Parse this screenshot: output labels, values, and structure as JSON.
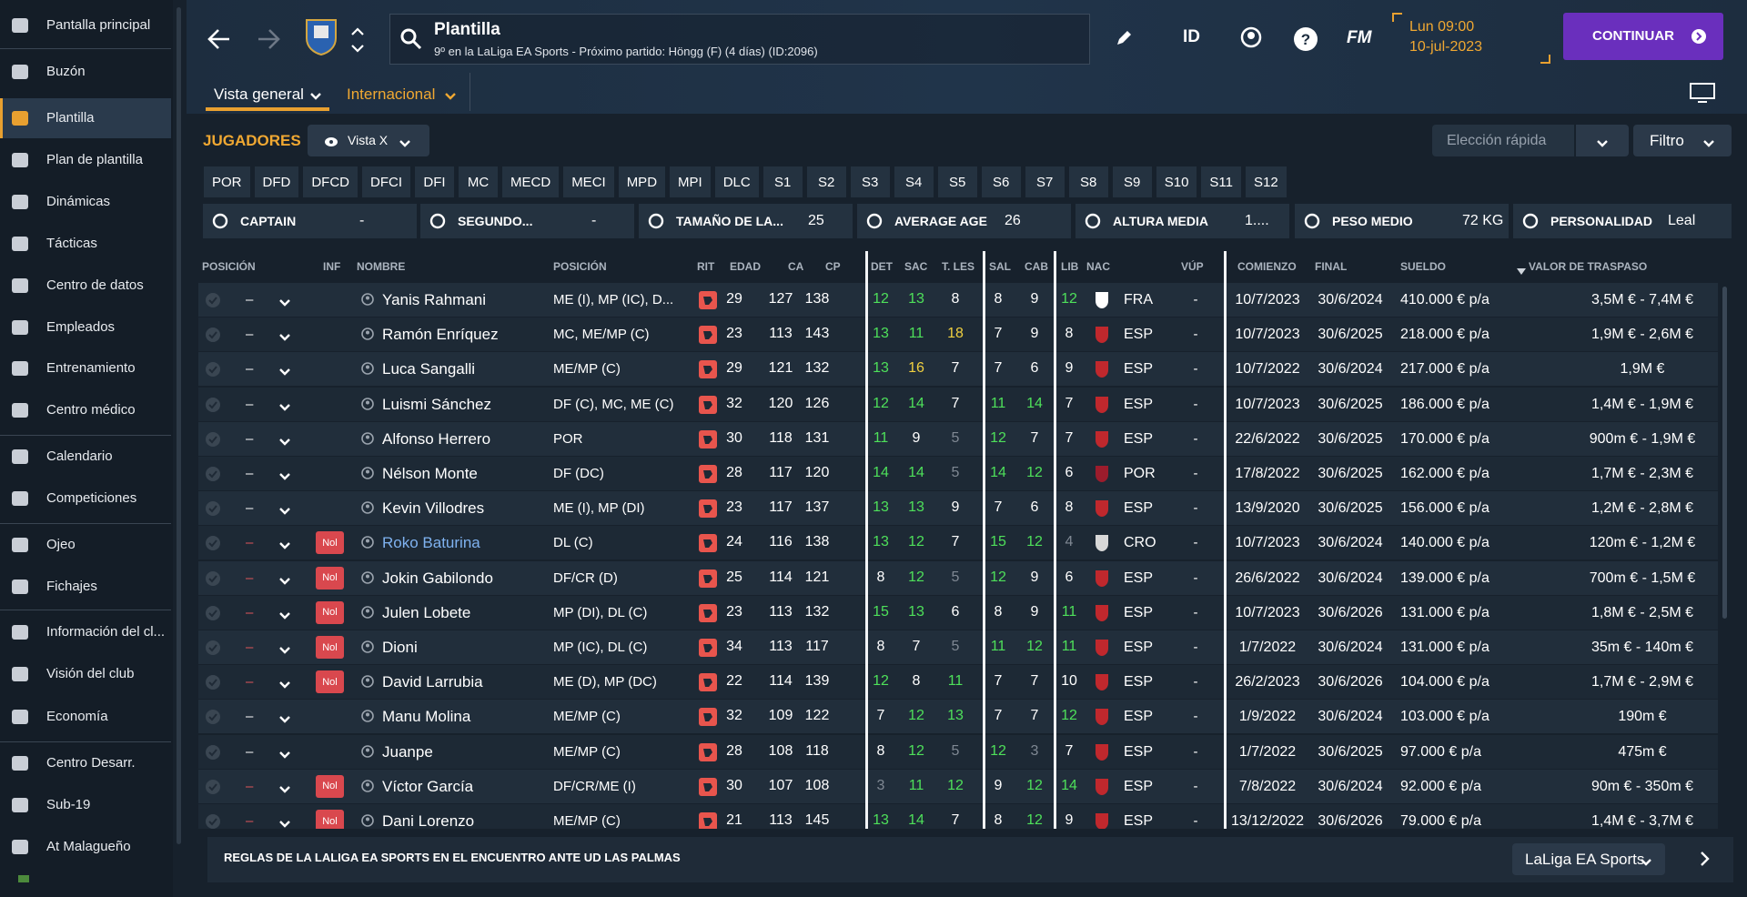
{
  "sidebar": {
    "items": [
      "Pantalla principal",
      "Buzón",
      "Plantilla",
      "Plan de plantilla",
      "Dinámicas",
      "Tácticas",
      "Centro de datos",
      "Empleados",
      "Entrenamiento",
      "Centro médico",
      "Calendario",
      "Competiciones",
      "Ojeo",
      "Fichajes",
      "Información del cl...",
      "Visión del club",
      "Economía",
      "Centro Desarr.",
      "Sub-19",
      "At Malagueño"
    ],
    "active": 2
  },
  "header": {
    "title": "Plantilla",
    "subtitle": "9º en la LaLiga EA Sports - Próximo partido: Höngg (F) (4 días) (ID:2096)",
    "id_label": "ID",
    "fm_label": "FM",
    "time": "Lun 09:00",
    "date": "10-jul-2023",
    "continue": "CONTINUAR"
  },
  "tabs": [
    "Vista general",
    "Internacional"
  ],
  "toolbar": {
    "section": "JUGADORES",
    "view": "Vista X",
    "quick": "Elección rápida",
    "filter": "Filtro"
  },
  "position_filters": [
    "POR",
    "DFD",
    "DFCD",
    "DFCI",
    "DFI",
    "MC",
    "MECD",
    "MECI",
    "MPD",
    "MPI",
    "DLC",
    "S1",
    "S2",
    "S3",
    "S4",
    "S5",
    "S6",
    "S7",
    "S8",
    "S9",
    "S10",
    "S11",
    "S12"
  ],
  "stats": [
    {
      "label": "CAPTAIN",
      "value": "-"
    },
    {
      "label": "SEGUNDO...",
      "value": "-"
    },
    {
      "label": "TAMAÑO DE LA...",
      "value": "25"
    },
    {
      "label": "AVERAGE AGE",
      "value": "26"
    },
    {
      "label": "ALTURA MEDIA",
      "value": "1...."
    },
    {
      "label": "PESO MEDIO",
      "value": "72 KG"
    },
    {
      "label": "PERSONALIDAD",
      "value": "Leal"
    }
  ],
  "table": {
    "columns": [
      "POSICIÓN",
      "INF",
      "NOMBRE",
      "POSICIÓN",
      "RIT",
      "EDAD",
      "CA",
      "CP",
      "DET",
      "SAC",
      "T. LES",
      "SAL",
      "CAB",
      "LIB",
      "NAC",
      "VÚP",
      "COMIENZO",
      "FINAL",
      "SUELDO",
      "VALOR DE TRASPASO"
    ],
    "rows": [
      {
        "pos": "–",
        "name": "Yanis Rahmani",
        "position": "ME (I), MP (IC), D...",
        "age": 29,
        "ca": 127,
        "cp": 138,
        "det": 12,
        "sac": 13,
        "tles": 8,
        "sal": 8,
        "cab": 9,
        "lib": 12,
        "nac": "FRA",
        "vup": "-",
        "start": "10/7/2023",
        "end": "30/6/2024",
        "wage": "410.000 € p/a",
        "value": "3,5M € - 7,4M €"
      },
      {
        "pos": "–",
        "name": "Ramón Enríquez",
        "position": "MC, ME/MP (C)",
        "age": 23,
        "ca": 113,
        "cp": 143,
        "det": 13,
        "sac": 11,
        "tles": 18,
        "sal": 7,
        "cab": 9,
        "lib": 8,
        "nac": "ESP",
        "vup": "-",
        "start": "10/7/2023",
        "end": "30/6/2025",
        "wage": "218.000 € p/a",
        "value": "1,9M € - 2,6M €"
      },
      {
        "pos": "–",
        "name": "Luca Sangalli",
        "position": "ME/MP (C)",
        "age": 29,
        "ca": 121,
        "cp": 132,
        "det": 13,
        "sac": 16,
        "tles": 7,
        "sal": 7,
        "cab": 6,
        "lib": 9,
        "nac": "ESP",
        "vup": "-",
        "start": "10/7/2022",
        "end": "30/6/2024",
        "wage": "217.000 € p/a",
        "value": "1,9M €"
      },
      {
        "pos": "–",
        "name": "Luismi Sánchez",
        "position": "DF (C), MC, ME (C)",
        "age": 32,
        "ca": 120,
        "cp": 126,
        "det": 12,
        "sac": 14,
        "tles": 7,
        "sal": 11,
        "cab": 14,
        "lib": 7,
        "nac": "ESP",
        "vup": "-",
        "start": "10/7/2023",
        "end": "30/6/2025",
        "wage": "186.000 € p/a",
        "value": "1,4M € - 1,9M €"
      },
      {
        "pos": "–",
        "name": "Alfonso Herrero",
        "position": "POR",
        "age": 30,
        "ca": 118,
        "cp": 131,
        "det": 11,
        "sac": 9,
        "tles": 5,
        "sal": 12,
        "cab": 7,
        "lib": 7,
        "nac": "ESP",
        "vup": "-",
        "start": "22/6/2022",
        "end": "30/6/2025",
        "wage": "170.000 € p/a",
        "value": "900m € - 1,9M €"
      },
      {
        "pos": "–",
        "name": "Nélson Monte",
        "position": "DF (DC)",
        "age": 28,
        "ca": 117,
        "cp": 120,
        "det": 14,
        "sac": 14,
        "tles": 5,
        "sal": 14,
        "cab": 12,
        "lib": 6,
        "nac": "POR",
        "vup": "-",
        "start": "17/8/2022",
        "end": "30/6/2025",
        "wage": "162.000 € p/a",
        "value": "1,7M € - 2,3M €"
      },
      {
        "pos": "–",
        "name": "Kevin Villodres",
        "position": "ME (I), MP (DI)",
        "age": 23,
        "ca": 117,
        "cp": 137,
        "det": 13,
        "sac": 13,
        "tles": 9,
        "sal": 7,
        "cab": 6,
        "lib": 8,
        "nac": "ESP",
        "vup": "-",
        "start": "13/9/2020",
        "end": "30/6/2025",
        "wage": "156.000 € p/a",
        "value": "1,2M € - 2,8M €"
      },
      {
        "pos": "–",
        "inf": "Nol",
        "name": "Roko Baturina",
        "position": "DL (C)",
        "age": 24,
        "ca": 116,
        "cp": 138,
        "det": 13,
        "sac": 12,
        "tles": 7,
        "sal": 15,
        "cab": 12,
        "lib": 4,
        "nac": "CRO",
        "vup": "-",
        "start": "10/7/2023",
        "end": "30/6/2024",
        "wage": "140.000 € p/a",
        "value": "120m € - 1,2M €"
      },
      {
        "pos": "–",
        "inf": "Nol",
        "name": "Jokin Gabilondo",
        "position": "DF/CR (D)",
        "age": 25,
        "ca": 114,
        "cp": 121,
        "det": 8,
        "sac": 12,
        "tles": 5,
        "sal": 12,
        "cab": 9,
        "lib": 6,
        "nac": "ESP",
        "vup": "-",
        "start": "26/6/2022",
        "end": "30/6/2024",
        "wage": "139.000 € p/a",
        "value": "700m € - 1,5M €"
      },
      {
        "pos": "–",
        "inf": "Nol",
        "name": "Julen Lobete",
        "position": "MP (DI), DL (C)",
        "age": 23,
        "ca": 113,
        "cp": 132,
        "det": 15,
        "sac": 13,
        "tles": 6,
        "sal": 8,
        "cab": 9,
        "lib": 11,
        "nac": "ESP",
        "vup": "-",
        "start": "10/7/2023",
        "end": "30/6/2026",
        "wage": "131.000 € p/a",
        "value": "1,8M € - 2,5M €"
      },
      {
        "pos": "–",
        "inf": "Nol",
        "name": "Dioni",
        "position": "MP (IC), DL (C)",
        "age": 34,
        "ca": 113,
        "cp": 117,
        "det": 8,
        "sac": 7,
        "tles": 5,
        "sal": 11,
        "cab": 12,
        "lib": 11,
        "nac": "ESP",
        "vup": "-",
        "start": "1/7/2022",
        "end": "30/6/2024",
        "wage": "131.000 € p/a",
        "value": "35m € - 140m €"
      },
      {
        "pos": "–",
        "inf": "Nol",
        "name": "David Larrubia",
        "position": "ME (D), MP (DC)",
        "age": 22,
        "ca": 114,
        "cp": 139,
        "det": 12,
        "sac": 8,
        "tles": 11,
        "sal": 7,
        "cab": 7,
        "lib": 10,
        "nac": "ESP",
        "vup": "-",
        "start": "26/2/2023",
        "end": "30/6/2026",
        "wage": "104.000 € p/a",
        "value": "1,7M € - 2,9M €"
      },
      {
        "pos": "–",
        "name": "Manu Molina",
        "position": "ME/MP (C)",
        "age": 32,
        "ca": 109,
        "cp": 122,
        "det": 7,
        "sac": 12,
        "tles": 13,
        "sal": 7,
        "cab": 7,
        "lib": 12,
        "nac": "ESP",
        "vup": "-",
        "start": "1/9/2022",
        "end": "30/6/2024",
        "wage": "103.000 € p/a",
        "value": "190m €"
      },
      {
        "pos": "–",
        "name": "Juanpe",
        "position": "ME/MP (C)",
        "age": 28,
        "ca": 108,
        "cp": 118,
        "det": 8,
        "sac": 12,
        "tles": 5,
        "sal": 12,
        "cab": 3,
        "lib": 7,
        "nac": "ESP",
        "vup": "-",
        "start": "1/7/2022",
        "end": "30/6/2025",
        "wage": "97.000 € p/a",
        "value": "475m €"
      },
      {
        "pos": "–",
        "inf": "Nol",
        "name": "Víctor García",
        "position": "DF/CR/ME (I)",
        "age": 30,
        "ca": 107,
        "cp": 108,
        "det": 3,
        "sac": 11,
        "tles": 12,
        "sal": 9,
        "cab": 12,
        "lib": 14,
        "nac": "ESP",
        "vup": "-",
        "start": "7/8/2022",
        "end": "30/6/2024",
        "wage": "92.000 € p/a",
        "value": "90m € - 350m €"
      },
      {
        "pos": "–",
        "inf": "Nol",
        "name": "Dani Lorenzo",
        "position": "ME/MP (C)",
        "age": 21,
        "ca": 113,
        "cp": 145,
        "det": 13,
        "sac": 14,
        "tles": 7,
        "sal": 8,
        "cab": 12,
        "lib": 9,
        "nac": "ESP",
        "vup": "-",
        "start": "13/12/2022",
        "end": "30/6/2026",
        "wage": "79.000 € p/a",
        "value": "1,4M € - 3,7M €"
      }
    ]
  },
  "footer": {
    "rules": "REGLAS DE LA LALIGA EA SPORTS EN EL ENCUENTRO ANTE UD LAS PALMAS",
    "competition": "LaLiga EA Sports"
  }
}
